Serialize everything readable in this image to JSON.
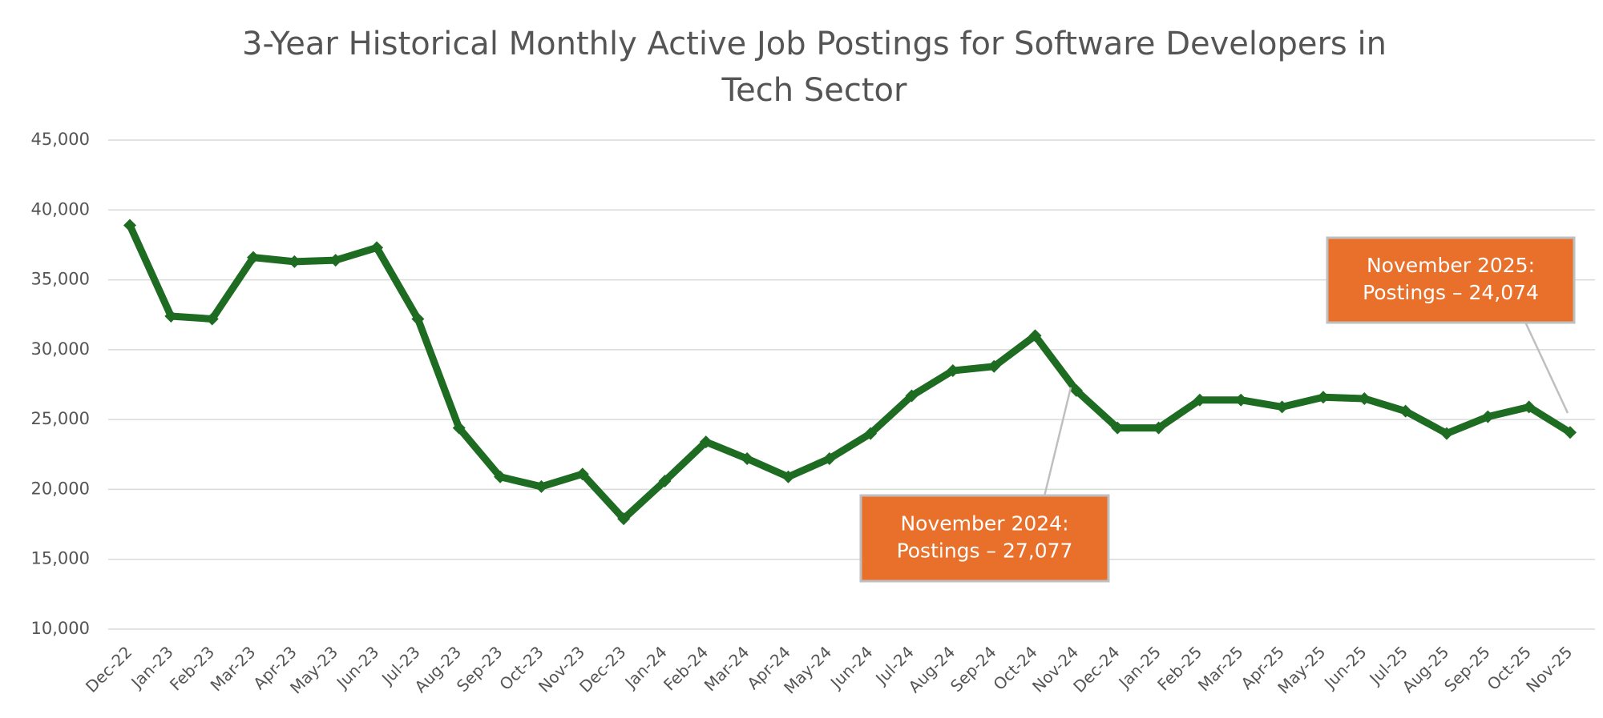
{
  "chart_data": {
    "type": "line",
    "title": [
      "3-Year Historical Monthly Active Job Postings for Software Developers in",
      "Tech Sector"
    ],
    "categories": [
      "Dec-22",
      "Jan-23",
      "Feb-23",
      "Mar-23",
      "Apr-23",
      "May-23",
      "Jun-23",
      "Jul-23",
      "Aug-23",
      "Sep-23",
      "Oct-23",
      "Nov-23",
      "Dec-23",
      "Jan-24",
      "Feb-24",
      "Mar-24",
      "Apr-24",
      "May-24",
      "Jun-24",
      "Jul-24",
      "Aug-24",
      "Sep-24",
      "Oct-24",
      "Nov-24",
      "Dec-24",
      "Jan-25",
      "Feb-25",
      "Mar-25",
      "Apr-25",
      "May-25",
      "Jun-25",
      "Jul-25",
      "Aug-25",
      "Sep-25",
      "Oct-25",
      "Nov-25"
    ],
    "values": [
      38900,
      32400,
      32200,
      36600,
      36300,
      36400,
      37300,
      32200,
      24400,
      20900,
      20200,
      21100,
      17900,
      20600,
      23400,
      22200,
      20900,
      22200,
      24000,
      26700,
      28500,
      28800,
      31000,
      27077,
      24400,
      24400,
      26400,
      26400,
      25900,
      26600,
      26500,
      25600,
      24000,
      25200,
      25900,
      24074
    ],
    "color": "#1e6b22",
    "ylim": [
      10000,
      45000
    ],
    "yticks": [
      {
        "value": 10000,
        "label": "10,000"
      },
      {
        "value": 15000,
        "label": "15,000"
      },
      {
        "value": 20000,
        "label": "20,000"
      },
      {
        "value": 25000,
        "label": "25,000"
      },
      {
        "value": 30000,
        "label": "30,000"
      },
      {
        "value": 35000,
        "label": "35,000"
      },
      {
        "value": 40000,
        "label": "40,000"
      },
      {
        "value": 45000,
        "label": "45,000"
      }
    ],
    "grid": true,
    "annotations": [
      {
        "lines": [
          "November 2024:",
          "Postings – 27,077"
        ],
        "color": "#e8702a"
      },
      {
        "lines": [
          "November 2025:",
          "Postings – 24,074"
        ],
        "color": "#e8702a"
      }
    ]
  }
}
